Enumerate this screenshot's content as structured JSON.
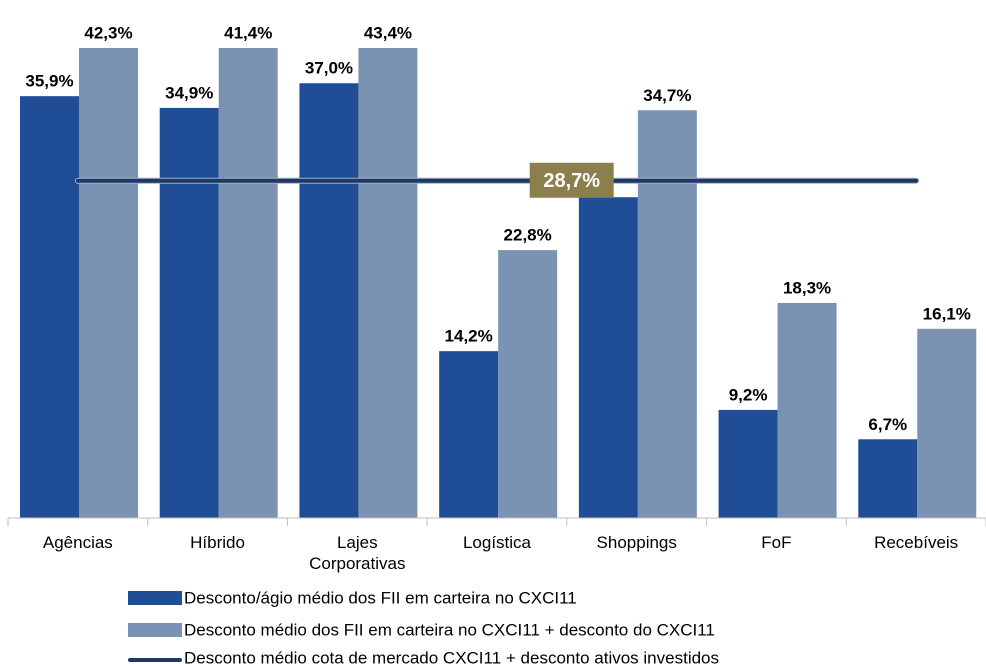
{
  "chart_data": {
    "type": "bar",
    "categories": [
      "Agências",
      "Híbrido",
      "Lajes Corporativas",
      "Logística",
      "Shoppings",
      "FoF",
      "Recebíveis"
    ],
    "series": [
      {
        "name": "Desconto/ágio médio dos FII em carteira no CXCI11",
        "color": "#1f4e96",
        "values": [
          35.9,
          34.9,
          37.0,
          14.2,
          27.3,
          9.2,
          6.7
        ],
        "value_labels": [
          "35,9%",
          "34,9%",
          "37,0%",
          "14,2%",
          null,
          "9,2%",
          "6,7%"
        ]
      },
      {
        "name": "Desconto médio dos FII em carteira no CXCI11 + desconto do CXCI11",
        "color": "#7a93b3",
        "values": [
          42.3,
          41.4,
          43.4,
          22.8,
          34.7,
          18.3,
          16.1
        ],
        "value_labels": [
          "42,3%",
          "41,4%",
          "43,4%",
          "22,8%",
          "34,7%",
          "18,3%",
          "16,1%"
        ]
      }
    ],
    "reference_line": {
      "name": "Desconto médio cota de mercado CXCI11 + desconto ativos investidos",
      "color": "#1f3864",
      "value": 28.7,
      "label": "28,7%",
      "label_color": "#8c7f4e"
    },
    "ylim": [
      0,
      40
    ],
    "grid": false,
    "legend": "bottom"
  }
}
